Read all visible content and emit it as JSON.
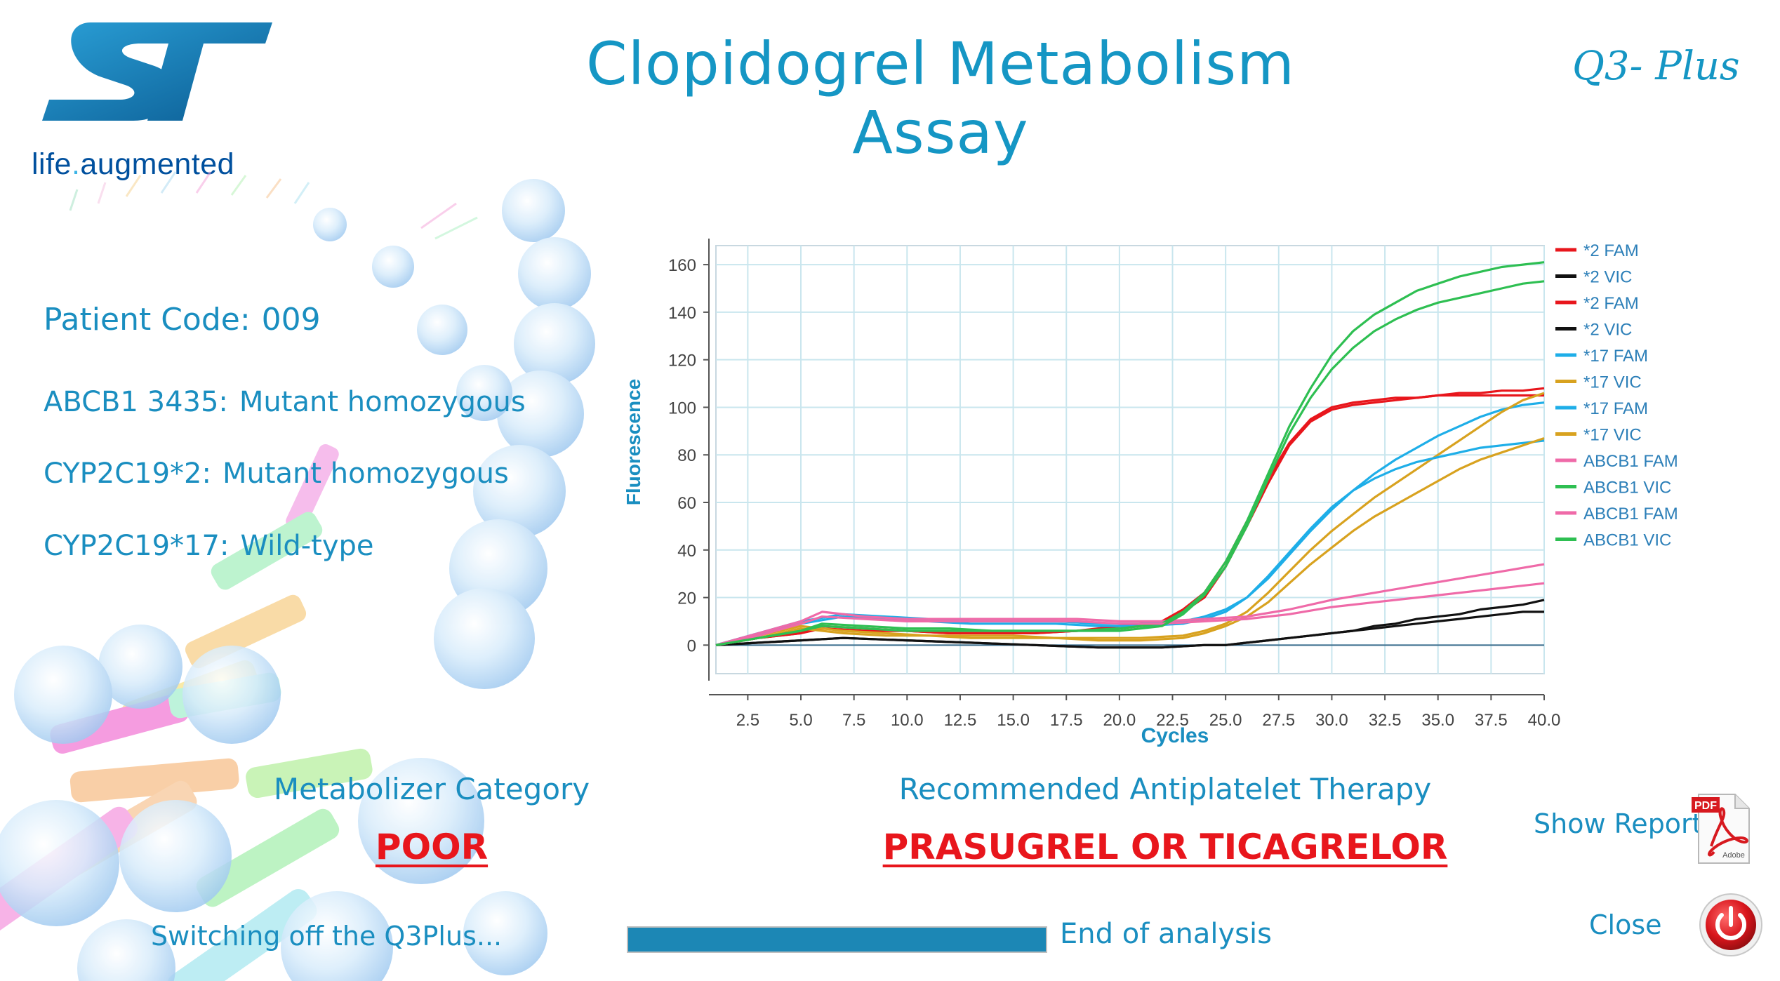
{
  "logo": {
    "brand_left": "life",
    "brand_dot": ".",
    "brand_right": "augmented",
    "mark_color": "#1a80b6"
  },
  "header": {
    "title": "Clopidogrel Metabolism Assay",
    "subtitle": "Q3- Plus"
  },
  "patient": {
    "code_label": "Patient Code:",
    "code_value": "009",
    "abcb1_label": "ABCB1 3435:",
    "abcb1_value": "Mutant homozygous",
    "cyp2_label": "CYP2C19*2:",
    "cyp2_value": "Mutant homozygous",
    "cyp17_label": "CYP2C19*17:",
    "cyp17_value": "Wild-type"
  },
  "results": {
    "metabolizer_heading": "Metabolizer Category",
    "metabolizer_value": "POOR",
    "therapy_heading": "Recommended Antiplatelet Therapy",
    "therapy_value": "PRASUGREL OR TICAGRELOR"
  },
  "status": {
    "message": "Switching off the Q3Plus...",
    "progress": 1.0,
    "progress_label": "End of analysis"
  },
  "actions": {
    "show_report": "Show Report",
    "close": "Close",
    "pdf_icon": "pdf-adobe-icon",
    "power_icon": "power-icon"
  },
  "colors": {
    "text_blue": "#1a8ec0",
    "result_red": "#e8161c",
    "progress_fill": "#1c87b5"
  },
  "chart_data": {
    "type": "line",
    "xlabel": "Cycles",
    "ylabel": "Fluorescence",
    "xlim": [
      1,
      40
    ],
    "ylim": [
      -12,
      168
    ],
    "xticks": [
      "2.5",
      "5.0",
      "7.5",
      "10.0",
      "12.5",
      "15.0",
      "17.5",
      "20.0",
      "22.5",
      "25.0",
      "27.5",
      "30.0",
      "32.5",
      "35.0",
      "37.5",
      "40.0"
    ],
    "yticks": [
      "0",
      "20",
      "40",
      "60",
      "80",
      "100",
      "120",
      "140",
      "160"
    ],
    "grid": true,
    "legend_position": "right",
    "series": [
      {
        "name": "*2 FAM",
        "color": "#e8161c",
        "x": [
          1,
          3,
          5,
          6,
          8,
          10,
          12,
          14,
          16,
          18,
          20,
          22,
          23,
          24,
          25,
          26,
          27,
          28,
          29,
          30,
          31,
          32,
          33,
          34,
          35,
          36,
          37,
          38,
          39,
          40
        ],
        "y": [
          0,
          3,
          5,
          8,
          7,
          6,
          5,
          5,
          5,
          6,
          8,
          10,
          15,
          22,
          35,
          52,
          70,
          85,
          95,
          100,
          102,
          103,
          104,
          104,
          105,
          105,
          105,
          105,
          105,
          105
        ]
      },
      {
        "name": "*2 VIC",
        "color": "#111111",
        "x": [
          1,
          3,
          5,
          7,
          10,
          13,
          16,
          19,
          22,
          24,
          25,
          26,
          27,
          28,
          29,
          30,
          31,
          32,
          33,
          34,
          35,
          36,
          37,
          38,
          39,
          40
        ],
        "y": [
          0,
          1,
          2,
          3,
          2,
          1,
          0,
          -1,
          -1,
          0,
          0,
          1,
          2,
          3,
          4,
          5,
          6,
          7,
          8,
          9,
          10,
          11,
          12,
          13,
          14,
          14
        ]
      },
      {
        "name": "*2 FAM",
        "color": "#e8161c",
        "x": [
          1,
          3,
          5,
          6,
          8,
          10,
          12,
          14,
          16,
          18,
          20,
          22,
          23,
          24,
          25,
          26,
          27,
          28,
          29,
          30,
          31,
          32,
          33,
          34,
          35,
          36,
          37,
          38,
          39,
          40
        ],
        "y": [
          0,
          3,
          5,
          7,
          6,
          6,
          5,
          5,
          5,
          6,
          7,
          9,
          14,
          20,
          33,
          50,
          68,
          84,
          94,
          99,
          101,
          102,
          103,
          104,
          105,
          106,
          106,
          107,
          107,
          108
        ]
      },
      {
        "name": "*2 VIC",
        "color": "#111111",
        "x": [
          1,
          3,
          5,
          7,
          10,
          13,
          16,
          19,
          22,
          24,
          25,
          26,
          27,
          28,
          29,
          30,
          31,
          32,
          33,
          34,
          35,
          36,
          37,
          38,
          39,
          40
        ],
        "y": [
          0,
          1,
          2,
          3,
          2,
          1,
          0,
          -1,
          -1,
          0,
          0,
          1,
          2,
          3,
          4,
          5,
          6,
          8,
          9,
          11,
          12,
          13,
          15,
          16,
          17,
          19
        ]
      },
      {
        "name": "*17 FAM",
        "color": "#1eaee8",
        "x": [
          1,
          3,
          5,
          7,
          9,
          11,
          13,
          15,
          17,
          19,
          21,
          23,
          24,
          25,
          26,
          27,
          28,
          29,
          30,
          31,
          32,
          33,
          34,
          35,
          36,
          37,
          38,
          39,
          40
        ],
        "y": [
          0,
          5,
          10,
          13,
          12,
          11,
          10,
          10,
          10,
          9,
          9,
          10,
          12,
          15,
          20,
          28,
          38,
          48,
          57,
          65,
          72,
          78,
          83,
          88,
          92,
          96,
          99,
          101,
          102
        ]
      },
      {
        "name": "*17 VIC",
        "color": "#d8a21f",
        "x": [
          1,
          3,
          5,
          7,
          9,
          11,
          13,
          15,
          17,
          19,
          21,
          23,
          24,
          25,
          26,
          27,
          28,
          29,
          30,
          31,
          32,
          33,
          34,
          35,
          36,
          37,
          38,
          39,
          40
        ],
        "y": [
          0,
          4,
          8,
          6,
          5,
          4,
          4,
          4,
          3,
          3,
          3,
          4,
          6,
          9,
          14,
          22,
          31,
          40,
          48,
          55,
          62,
          68,
          74,
          80,
          86,
          92,
          98,
          103,
          106
        ]
      },
      {
        "name": "*17 FAM",
        "color": "#1eaee8",
        "x": [
          1,
          3,
          5,
          7,
          9,
          11,
          13,
          15,
          17,
          19,
          21,
          23,
          24,
          25,
          26,
          27,
          28,
          29,
          30,
          31,
          32,
          33,
          34,
          35,
          36,
          37,
          38,
          39,
          40
        ],
        "y": [
          0,
          5,
          9,
          12,
          11,
          10,
          9,
          9,
          9,
          8,
          8,
          9,
          11,
          14,
          20,
          29,
          39,
          49,
          58,
          65,
          70,
          74,
          77,
          79,
          81,
          83,
          84,
          85,
          86
        ]
      },
      {
        "name": "*17 VIC",
        "color": "#d8a21f",
        "x": [
          1,
          3,
          5,
          7,
          9,
          11,
          13,
          15,
          17,
          19,
          21,
          23,
          24,
          25,
          26,
          27,
          28,
          29,
          30,
          31,
          32,
          33,
          34,
          35,
          36,
          37,
          38,
          39,
          40
        ],
        "y": [
          0,
          3,
          7,
          5,
          4,
          4,
          3,
          3,
          3,
          2,
          2,
          3,
          5,
          8,
          12,
          18,
          26,
          34,
          41,
          48,
          54,
          59,
          64,
          69,
          74,
          78,
          81,
          84,
          87
        ]
      },
      {
        "name": "ABCB1 FAM",
        "color": "#ef6aa8",
        "x": [
          1,
          3,
          5,
          6,
          8,
          10,
          12,
          14,
          16,
          18,
          20,
          22,
          24,
          26,
          28,
          30,
          32,
          34,
          36,
          38,
          40
        ],
        "y": [
          0,
          5,
          10,
          14,
          12,
          11,
          11,
          11,
          11,
          11,
          10,
          10,
          11,
          12,
          15,
          19,
          22,
          25,
          28,
          31,
          34
        ]
      },
      {
        "name": "ABCB1 VIC",
        "color": "#2ebf52",
        "x": [
          1,
          3,
          5,
          6,
          8,
          10,
          12,
          14,
          16,
          18,
          20,
          22,
          23,
          24,
          25,
          26,
          27,
          28,
          29,
          30,
          31,
          32,
          33,
          34,
          35,
          36,
          37,
          38,
          39,
          40
        ],
        "y": [
          0,
          3,
          6,
          9,
          8,
          7,
          7,
          6,
          6,
          6,
          7,
          9,
          14,
          22,
          35,
          52,
          72,
          92,
          108,
          122,
          132,
          139,
          144,
          149,
          152,
          155,
          157,
          159,
          160,
          161
        ]
      },
      {
        "name": "ABCB1 FAM",
        "color": "#ef6aa8",
        "x": [
          1,
          3,
          5,
          6,
          8,
          10,
          12,
          14,
          16,
          18,
          20,
          22,
          24,
          26,
          28,
          30,
          32,
          34,
          36,
          38,
          40
        ],
        "y": [
          0,
          4,
          9,
          12,
          11,
          10,
          10,
          10,
          10,
          10,
          9,
          9,
          10,
          11,
          13,
          16,
          18,
          20,
          22,
          24,
          26
        ]
      },
      {
        "name": "ABCB1 VIC",
        "color": "#2ebf52",
        "x": [
          1,
          3,
          5,
          6,
          8,
          10,
          12,
          14,
          16,
          18,
          20,
          22,
          23,
          24,
          25,
          26,
          27,
          28,
          29,
          30,
          31,
          32,
          33,
          34,
          35,
          36,
          37,
          38,
          39,
          40
        ],
        "y": [
          0,
          3,
          6,
          8,
          7,
          6,
          6,
          6,
          6,
          6,
          6,
          8,
          13,
          21,
          33,
          50,
          70,
          89,
          104,
          116,
          125,
          132,
          137,
          141,
          144,
          146,
          148,
          150,
          152,
          153
        ]
      }
    ]
  }
}
